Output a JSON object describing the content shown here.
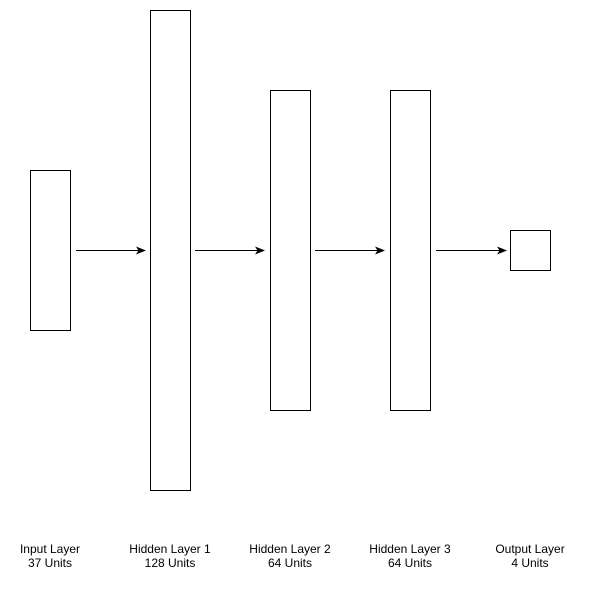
{
  "layers": [
    {
      "name": "Input Layer",
      "units": "37 Units"
    },
    {
      "name": "Hidden Layer 1",
      "units": "128 Units"
    },
    {
      "name": "Hidden Layer 2",
      "units": "64 Units"
    },
    {
      "name": "Hidden Layer 3",
      "units": "64 Units"
    },
    {
      "name": "Output Layer",
      "units": "4 Units"
    }
  ],
  "colors": {
    "stroke": "#000000",
    "fill": "#ffffff",
    "text": "#000000"
  }
}
